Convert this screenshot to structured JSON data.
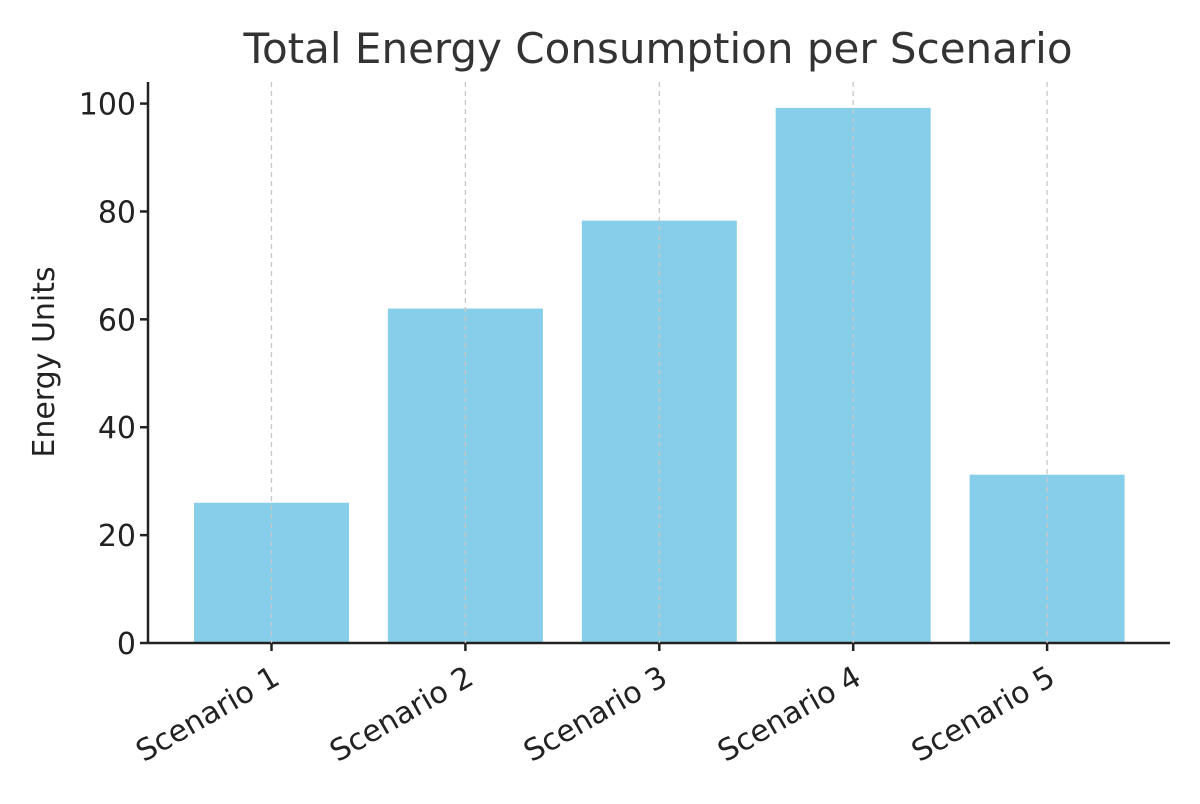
{
  "chart_data": {
    "type": "bar",
    "title": "Total Energy Consumption per Scenario",
    "xlabel": "",
    "ylabel": "Energy Units",
    "categories": [
      "Scenario 1",
      "Scenario 2",
      "Scenario 3",
      "Scenario 4",
      "Scenario 5"
    ],
    "values": [
      26,
      62,
      78.3,
      99.2,
      31.2
    ],
    "ylim": [
      0,
      104
    ],
    "yticks": [
      0,
      20,
      40,
      60,
      80,
      100
    ],
    "grid": "vertical dashed",
    "colors": {
      "bar": "#87ceeb",
      "grid": "#c8c8c8",
      "axis": "#222222"
    }
  }
}
